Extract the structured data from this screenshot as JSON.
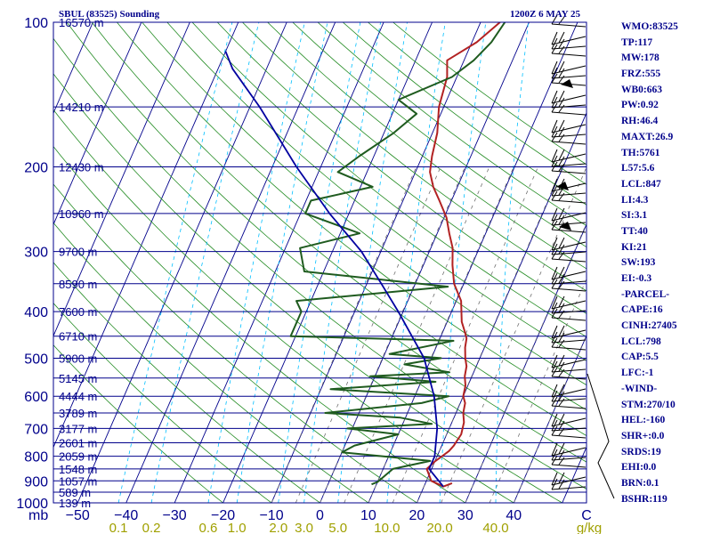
{
  "header": {
    "station": "SBUL (83525) Sounding",
    "time": "1200Z  6 MAY 25"
  },
  "indices": [
    "WMO:83525",
    "TP:117",
    "MW:178",
    "FRZ:555",
    "WB0:663",
    "PW:0.92",
    "RH:46.4",
    "MAXT:26.9",
    "TH:5761",
    "L57:5.6",
    "LCL:847",
    "LI:4.3",
    "SI:3.1",
    "TT:40",
    "KI:21",
    "SW:193",
    "EI:-0.3",
    "-PARCEL-",
    "CAPE:16",
    "CINH:27405",
    "LCL:798",
    "CAP:5.5",
    "LFC:-1",
    "-WIND-",
    "STM:270/10",
    "HEL:-160",
    "SHR+:0.0",
    "SRDS:19",
    "EHI:0.0",
    "BRN:0.1",
    "BSHR:119"
  ],
  "colors": {
    "isobar": "#00008b",
    "isotherm": "#00008b",
    "dry_adiabat": "#228b22",
    "mixing_ratio": "#00bfff",
    "temperature": "#b22222",
    "dewpoint": "#1f5b1f",
    "parcel": "#0000a0",
    "frame": "#00008b",
    "mixing_ratio_labels": "#a0a000",
    "wind_barbs": "#000000"
  },
  "chart_data": {
    "type": "line",
    "chart_kind": "skew-T log-P sounding diagram",
    "x_axis": {
      "quantity": "temperature",
      "ticks": [
        -50,
        -40,
        -30,
        -20,
        -10,
        0,
        10,
        20,
        30,
        40,
        "C"
      ],
      "tick_labels": [
        "−50",
        "−40",
        "−30",
        "−20",
        "−10",
        "0",
        "10",
        "20",
        "30",
        "40",
        "C"
      ],
      "range": [
        -55,
        55
      ]
    },
    "y_axis": {
      "quantity": "pressure",
      "unit_label": "mb",
      "scale": "log",
      "range": [
        1000,
        100
      ],
      "ticks": [
        100,
        200,
        300,
        400,
        500,
        600,
        700,
        800,
        900,
        1000
      ],
      "height_labels": [
        {
          "p": 100,
          "label": "16570 m"
        },
        {
          "p": 150,
          "label": "14210 m"
        },
        {
          "p": 200,
          "label": "12430 m"
        },
        {
          "p": 250,
          "label": "10960 m"
        },
        {
          "p": 300,
          "label": "9700 m"
        },
        {
          "p": 350,
          "label": "8590 m"
        },
        {
          "p": 400,
          "label": "7600 m"
        },
        {
          "p": 450,
          "label": "6710 m"
        },
        {
          "p": 500,
          "label": "5900 m"
        },
        {
          "p": 550,
          "label": "5145 m"
        },
        {
          "p": 600,
          "label": "4444 m"
        },
        {
          "p": 650,
          "label": "3789 m"
        },
        {
          "p": 700,
          "label": "3177 m"
        },
        {
          "p": 750,
          "label": "2601 m"
        },
        {
          "p": 800,
          "label": "2059 m"
        },
        {
          "p": 850,
          "label": "1548 m"
        },
        {
          "p": 900,
          "label": "1057 m"
        },
        {
          "p": 950,
          "label": "589 m"
        },
        {
          "p": 1000,
          "label": "139 m"
        }
      ]
    },
    "mixing_ratio_labels": {
      "unit": "g/kg",
      "values": [
        "0.1",
        "0.2",
        "0.6",
        "1.0",
        "2.0",
        "3.0",
        "5.0",
        "10.0",
        "20.0",
        "40.0"
      ]
    },
    "grid": true,
    "series": [
      {
        "name": "temperature",
        "values": [
          [
            910,
            25.5
          ],
          [
            925,
            24.0
          ],
          [
            900,
            21.0
          ],
          [
            850,
            19.0
          ],
          [
            820,
            20.0
          ],
          [
            800,
            21.0
          ],
          [
            780,
            22.0
          ],
          [
            760,
            22.5
          ],
          [
            720,
            23.0
          ],
          [
            680,
            22.5
          ],
          [
            650,
            21.5
          ],
          [
            620,
            21.0
          ],
          [
            600,
            20.0
          ],
          [
            570,
            19.5
          ],
          [
            545,
            18.5
          ],
          [
            520,
            18.0
          ],
          [
            500,
            17.0
          ],
          [
            475,
            16.0
          ],
          [
            455,
            15.5
          ],
          [
            440,
            14.5
          ],
          [
            420,
            13.0
          ],
          [
            380,
            11.0
          ],
          [
            350,
            8.0
          ],
          [
            320,
            6.0
          ],
          [
            295,
            4.5
          ],
          [
            275,
            2.5
          ],
          [
            255,
            0.5
          ],
          [
            235,
            -2.5
          ],
          [
            220,
            -5.0
          ],
          [
            205,
            -7.0
          ],
          [
            190,
            -8.0
          ],
          [
            170,
            -9.0
          ],
          [
            150,
            -11.0
          ],
          [
            130,
            -12.0
          ],
          [
            120,
            -13.5
          ],
          [
            110,
            -9.0
          ],
          [
            100,
            -6.0
          ]
        ]
      },
      {
        "name": "dewpoint",
        "values": [
          [
            915,
            9.0
          ],
          [
            905,
            10.0
          ],
          [
            850,
            12.0
          ],
          [
            818,
            19.0
          ],
          [
            785,
            0.0
          ],
          [
            760,
            2.0
          ],
          [
            720,
            10.0
          ],
          [
            700,
            -1.0
          ],
          [
            685,
            16.0
          ],
          [
            665,
            9.0
          ],
          [
            650,
            -7.0
          ],
          [
            620,
            12.0
          ],
          [
            600,
            17.0
          ],
          [
            580,
            -8.0
          ],
          [
            560,
            13.0
          ],
          [
            545,
            -1.0
          ],
          [
            535,
            15.0
          ],
          [
            515,
            5.0
          ],
          [
            500,
            12.0
          ],
          [
            490,
            1.0
          ],
          [
            460,
            13.0
          ],
          [
            450,
            -21.0
          ],
          [
            400,
            -21.0
          ],
          [
            380,
            -23.0
          ],
          [
            355,
            7.0
          ],
          [
            330,
            -24.0
          ],
          [
            295,
            -27.0
          ],
          [
            275,
            -16.0
          ],
          [
            250,
            -29.0
          ],
          [
            235,
            -29.0
          ],
          [
            220,
            -17.5
          ],
          [
            205,
            -26.0
          ],
          [
            190,
            -23.0
          ],
          [
            170,
            -18.0
          ],
          [
            155,
            -15.0
          ],
          [
            145,
            -20.0
          ],
          [
            130,
            -11.0
          ],
          [
            120,
            -8.0
          ],
          [
            110,
            -6.0
          ],
          [
            100,
            -5.0
          ]
        ]
      },
      {
        "name": "parcel",
        "values": [
          [
            925,
            24.0
          ],
          [
            850,
            19.5
          ],
          [
            800,
            19.5
          ],
          [
            700,
            17.5
          ],
          [
            600,
            14.0
          ],
          [
            500,
            8.5
          ],
          [
            400,
            -1.0
          ],
          [
            350,
            -7.0
          ],
          [
            300,
            -14.0
          ],
          [
            250,
            -24.0
          ],
          [
            200,
            -35.0
          ],
          [
            150,
            -48.0
          ],
          [
            125,
            -57.0
          ],
          [
            115,
            -60.0
          ]
        ]
      }
    ],
    "isotherms_C": [
      -150,
      -140,
      -130,
      -120,
      -110,
      -100,
      -90,
      -80,
      -70,
      -60,
      -50,
      -40,
      -30,
      -20,
      -10,
      0,
      10,
      20,
      30,
      40,
      50
    ]
  }
}
